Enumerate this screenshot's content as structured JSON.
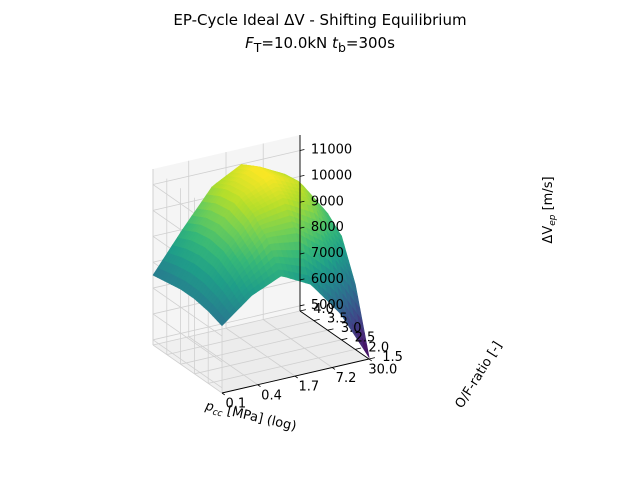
{
  "chart_data": {
    "type": "surface3d",
    "title_line1": "EP-Cycle Ideal ΔV - Shifting Equilibrium",
    "title_line2": {
      "pre": "F",
      "pre_sub": "T",
      "mid": "=10.0kN ",
      "var": "t",
      "var_sub": "b",
      "post": "=300s"
    },
    "x_axis": {
      "label_pre": "p",
      "label_sub": "cc",
      "label_post": " [MPa] (log)",
      "scale": "log",
      "ticks": [
        "0.1",
        "0.4",
        "1.7",
        "7.2",
        "30.0"
      ],
      "range": [
        0.1,
        30.0
      ]
    },
    "y_axis": {
      "label": "O/F-ratio [-]",
      "ticks": [
        "1.5",
        "2.0",
        "2.5",
        "3.0",
        "3.5",
        "4.0"
      ],
      "range": [
        1.5,
        4.0
      ]
    },
    "z_axis": {
      "label_pre": "ΔV",
      "label_sub": "ep",
      "label_post": " [m/s]",
      "ticks": [
        "5000",
        "6000",
        "7000",
        "8000",
        "9000",
        "10000",
        "11000"
      ],
      "range": [
        4800,
        11600
      ]
    },
    "surface": {
      "colormap": "viridis",
      "grid_x_log": [
        -1,
        -0.5,
        0,
        0.5,
        1,
        1.48
      ],
      "grid_y": [
        1.5,
        2.0,
        2.5,
        3.0,
        3.5,
        4.0
      ],
      "z_values": [
        [
          7400,
          7600,
          7700,
          7700,
          7600,
          7500
        ],
        [
          8300,
          8900,
          9300,
          9400,
          9300,
          9000
        ],
        [
          8800,
          9900,
          10500,
          10800,
          10700,
          10400
        ],
        [
          8200,
          9800,
          10800,
          11300,
          11300,
          11000
        ],
        [
          6800,
          8900,
          10200,
          10800,
          10700,
          10300
        ],
        [
          4850,
          7300,
          8800,
          9300,
          9100,
          8300
        ]
      ]
    }
  }
}
